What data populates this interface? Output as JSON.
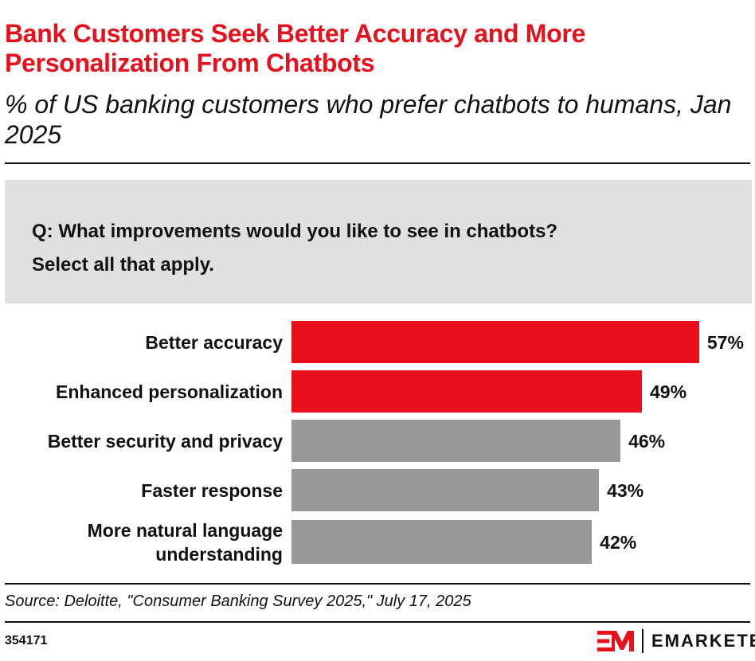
{
  "title": "Bank Customers Seek Better Accuracy and More Personalization From Chatbots",
  "subtitle": "% of US banking customers who prefer chatbots to humans, Jan 2025",
  "question": {
    "line1": "Q: What improvements would you like to see in chatbots?",
    "line2": "Select all that apply."
  },
  "chart_data": {
    "type": "bar",
    "orientation": "horizontal",
    "categories": [
      "Better accuracy",
      "Enhanced personalization",
      "Better security and privacy",
      "Faster response",
      "More natural language understanding"
    ],
    "values": [
      57,
      49,
      46,
      43,
      42
    ],
    "value_labels": [
      "57%",
      "49%",
      "46%",
      "43%",
      "42%"
    ],
    "colors": [
      "#e8101c",
      "#e8101c",
      "#999999",
      "#999999",
      "#999999"
    ],
    "unit": "%",
    "grid": false
  },
  "source": "Source: Deloitte, \"Consumer Banking Survey 2025,\" July 17, 2025",
  "chart_id": "354171",
  "logo": {
    "mark": "EM",
    "word": "EMARKETER",
    "color": "#e8101c"
  }
}
